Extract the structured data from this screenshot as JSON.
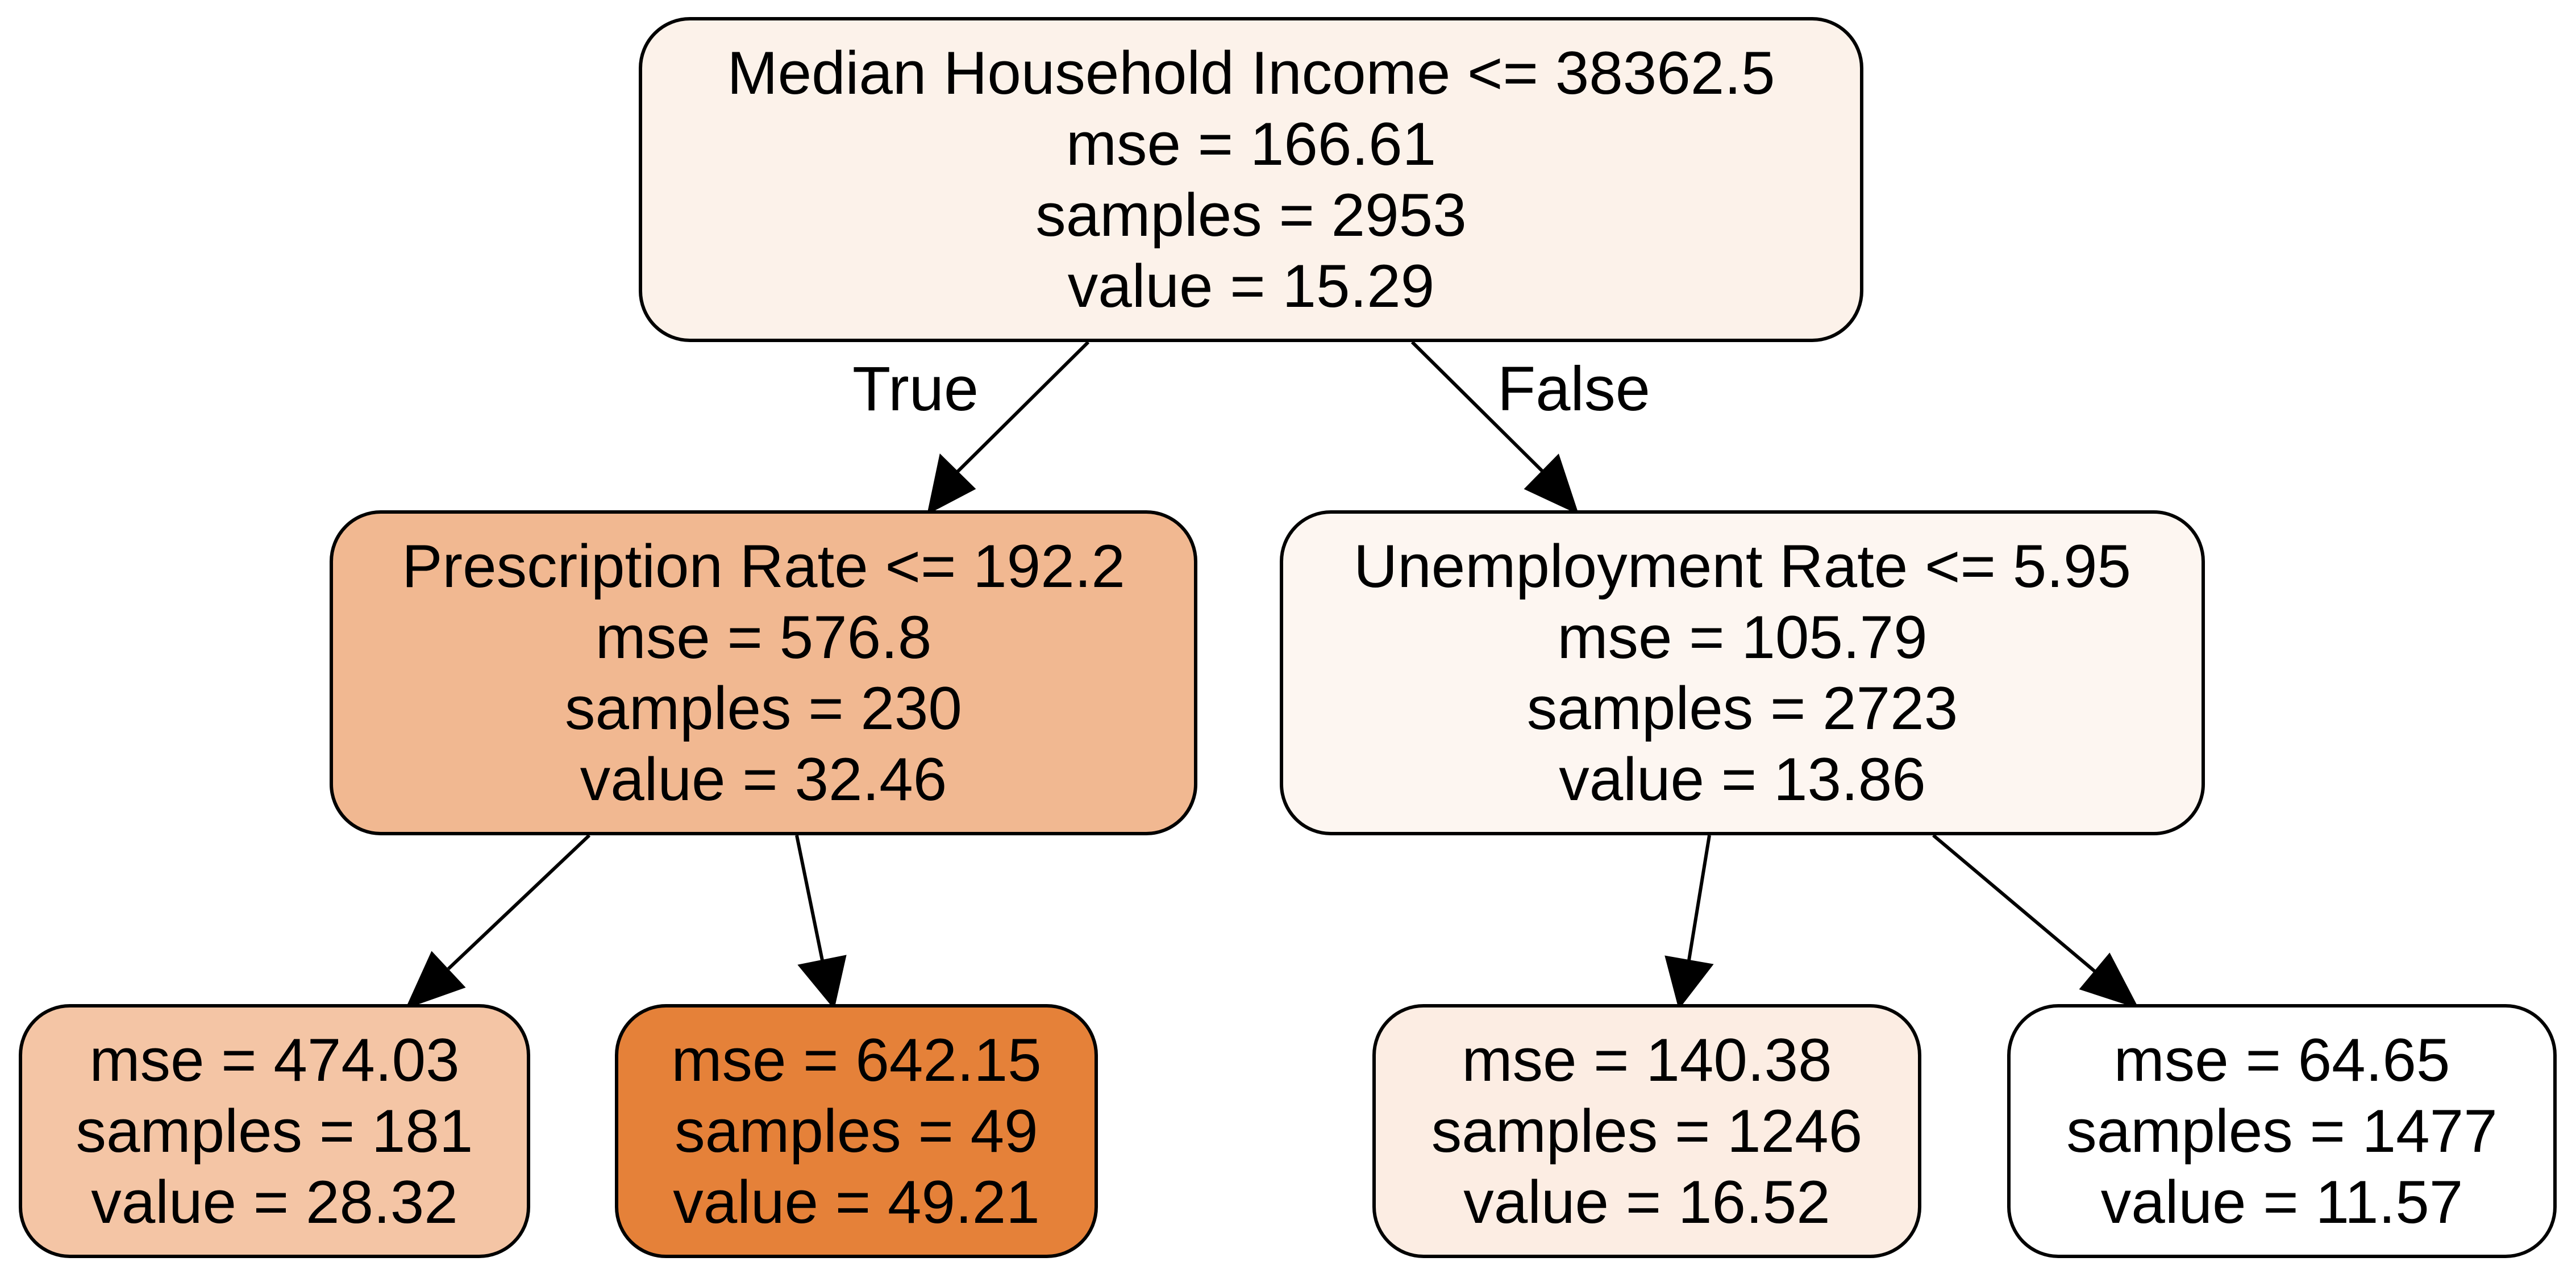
{
  "tree": {
    "root": {
      "split": "Median Household Income <= 38362.5",
      "mse": "mse = 166.61",
      "samples": "samples = 2953",
      "value": "value = 15.29",
      "fill": "#fcf2ea"
    },
    "left": {
      "split": "Prescription Rate <= 192.2",
      "mse": "mse = 576.8",
      "samples": "samples = 230",
      "value": "value = 32.46",
      "fill": "#f1b891"
    },
    "right": {
      "split": "Unemployment Rate <= 5.95",
      "mse": "mse = 105.79",
      "samples": "samples = 2723",
      "value": "value = 13.86",
      "fill": "#fdf6f1"
    },
    "leaf_1": {
      "mse": "mse = 474.03",
      "samples": "samples = 181",
      "value": "value = 28.32",
      "fill": "#f4c5a5"
    },
    "leaf_2": {
      "mse": "mse = 642.15",
      "samples": "samples = 49",
      "value": "value = 49.21",
      "fill": "#e58139"
    },
    "leaf_3": {
      "mse": "mse = 140.38",
      "samples": "samples = 1246",
      "value": "value = 16.52",
      "fill": "#fcede3"
    },
    "leaf_4": {
      "mse": "mse = 64.65",
      "samples": "samples = 1477",
      "value": "value = 11.57",
      "fill": "#ffffff"
    },
    "edge_labels": {
      "true_label": "True",
      "false_label": "False"
    }
  }
}
